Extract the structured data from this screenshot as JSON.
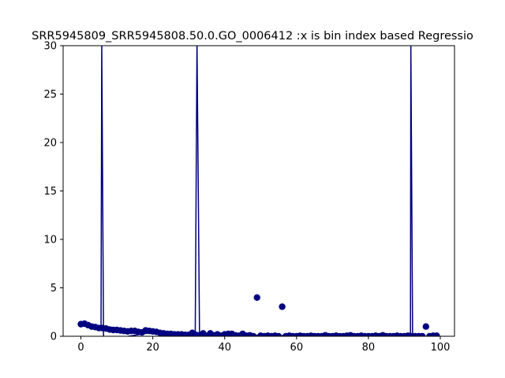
{
  "chart_data": {
    "type": "scatter",
    "title": "SRR5945809_SRR5945808.50.0.GO_0006412 :x is bin index based Regressio",
    "xlabel": "",
    "ylabel": "",
    "xlim": [
      -4.95,
      103.95
    ],
    "ylim": [
      0,
      30
    ],
    "x_ticks": [
      "0",
      "20",
      "40",
      "60",
      "80",
      "100"
    ],
    "y_ticks": [
      "0",
      "5",
      "10",
      "15",
      "20",
      "25",
      "30"
    ],
    "grid": false,
    "color": "#000080",
    "points": [
      [
        0,
        1.25
      ],
      [
        1,
        1.3
      ],
      [
        2,
        1.15
      ],
      [
        3,
        1.0
      ],
      [
        4,
        0.95
      ],
      [
        5,
        0.85
      ],
      [
        6,
        0.85
      ],
      [
        7,
        0.8
      ],
      [
        8,
        0.7
      ],
      [
        9,
        0.65
      ],
      [
        10,
        0.65
      ],
      [
        11,
        0.6
      ],
      [
        12,
        0.55
      ],
      [
        13,
        0.5
      ],
      [
        14,
        0.55
      ],
      [
        15,
        0.55
      ],
      [
        16,
        0.45
      ],
      [
        17,
        0.4
      ],
      [
        18,
        0.6
      ],
      [
        19,
        0.55
      ],
      [
        20,
        0.5
      ],
      [
        21,
        0.45
      ],
      [
        22,
        0.35
      ],
      [
        23,
        0.3
      ],
      [
        24,
        0.25
      ],
      [
        25,
        0.25
      ],
      [
        26,
        0.2
      ],
      [
        27,
        0.2
      ],
      [
        28,
        0.2
      ],
      [
        29,
        0.15
      ],
      [
        30,
        0.15
      ],
      [
        31,
        0.35
      ],
      [
        32,
        0.15
      ],
      [
        33,
        0.1
      ],
      [
        34,
        0.3
      ],
      [
        35,
        0.05
      ],
      [
        36,
        0.3
      ],
      [
        37,
        0.1
      ],
      [
        38,
        0.2
      ],
      [
        39,
        0.05
      ],
      [
        40,
        0.2
      ],
      [
        41,
        0.25
      ],
      [
        42,
        0.25
      ],
      [
        43,
        0.1
      ],
      [
        44,
        0.05
      ],
      [
        45,
        0.25
      ],
      [
        46,
        0.05
      ],
      [
        47,
        0.1
      ],
      [
        48,
        0.0
      ],
      [
        49,
        4.0
      ],
      [
        50,
        0.05
      ],
      [
        51,
        0.0
      ],
      [
        52,
        0.05
      ],
      [
        53,
        0.0
      ],
      [
        54,
        0.05
      ],
      [
        55,
        0.0
      ],
      [
        56,
        3.05
      ],
      [
        57,
        0.0
      ],
      [
        58,
        0.05
      ],
      [
        59,
        0.0
      ],
      [
        60,
        0.0
      ],
      [
        61,
        0.05
      ],
      [
        62,
        0.0
      ],
      [
        63,
        0.0
      ],
      [
        64,
        0.05
      ],
      [
        65,
        0.0
      ],
      [
        66,
        0.0
      ],
      [
        67,
        0.0
      ],
      [
        68,
        0.1
      ],
      [
        69,
        0.0
      ],
      [
        70,
        0.0
      ],
      [
        71,
        0.05
      ],
      [
        72,
        0.0
      ],
      [
        73,
        0.0
      ],
      [
        74,
        0.05
      ],
      [
        75,
        0.1
      ],
      [
        76,
        0.0
      ],
      [
        77,
        0.0
      ],
      [
        78,
        0.05
      ],
      [
        79,
        0.0
      ],
      [
        80,
        0.0
      ],
      [
        81,
        0.0
      ],
      [
        82,
        0.05
      ],
      [
        83,
        0.0
      ],
      [
        84,
        0.1
      ],
      [
        85,
        0.0
      ],
      [
        86,
        0.0
      ],
      [
        87,
        0.0
      ],
      [
        88,
        0.05
      ],
      [
        89,
        0.0
      ],
      [
        90,
        0.0
      ],
      [
        91,
        0.05
      ],
      [
        92,
        0.0
      ],
      [
        93,
        0.0
      ],
      [
        94,
        0.0
      ],
      [
        95,
        0.0
      ],
      [
        96,
        1.0
      ],
      [
        97,
        0.0
      ],
      [
        98,
        0.05
      ],
      [
        99,
        0.05
      ]
    ],
    "spikes": [
      {
        "x_top": 5.8,
        "x_bottom": 6.3
      },
      {
        "x_top": 32.3,
        "x_bottom": 31.8
      },
      {
        "x_top": 91.8,
        "x_bottom": 92.3
      }
    ]
  }
}
